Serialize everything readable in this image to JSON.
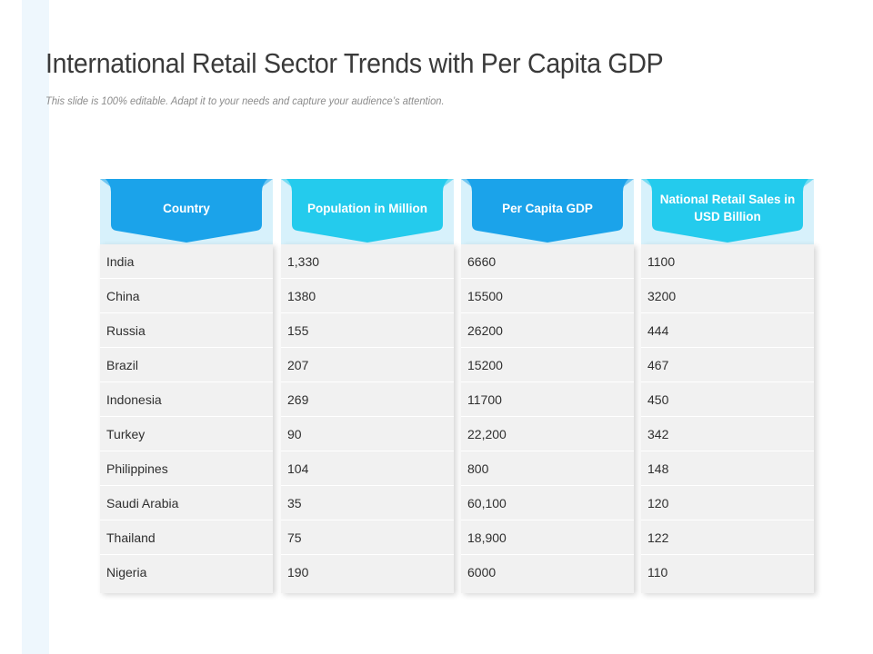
{
  "slide": {
    "title": "International Retail Sector Trends with Per Capita GDP",
    "subtitle": "This slide is 100% editable. Adapt it to your needs and capture your audience’s attention."
  },
  "colors": {
    "header_band": "#d7f1fb",
    "header_blue": "#1ba3ea",
    "header_cyan": "#24cbed",
    "row_bg": "#f1f1f1",
    "title_text": "#3a3a3a"
  },
  "table": {
    "columns": [
      {
        "header": "Country",
        "header_color": "#1ba3ea"
      },
      {
        "header": "Population in Million",
        "header_color": "#24cbed"
      },
      {
        "header": "Per Capita GDP",
        "header_color": "#1ba3ea"
      },
      {
        "header": "National Retail Sales in USD Billion",
        "header_color": "#24cbed"
      }
    ],
    "rows": [
      [
        "India",
        "1,330",
        "6660",
        "1100"
      ],
      [
        "China",
        "1380",
        "15500",
        "3200"
      ],
      [
        "Russia",
        "155",
        "26200",
        "444"
      ],
      [
        "Brazil",
        "207",
        "15200",
        "467"
      ],
      [
        "Indonesia",
        "269",
        "11700",
        "450"
      ],
      [
        "Turkey",
        "90",
        "22,200",
        "342"
      ],
      [
        "Philippines",
        "104",
        "800",
        "148"
      ],
      [
        "Saudi Arabia",
        "35",
        "60,100",
        "120"
      ],
      [
        "Thailand",
        "75",
        "18,900",
        "122"
      ],
      [
        "Nigeria",
        "190",
        "6000",
        "110"
      ]
    ]
  }
}
